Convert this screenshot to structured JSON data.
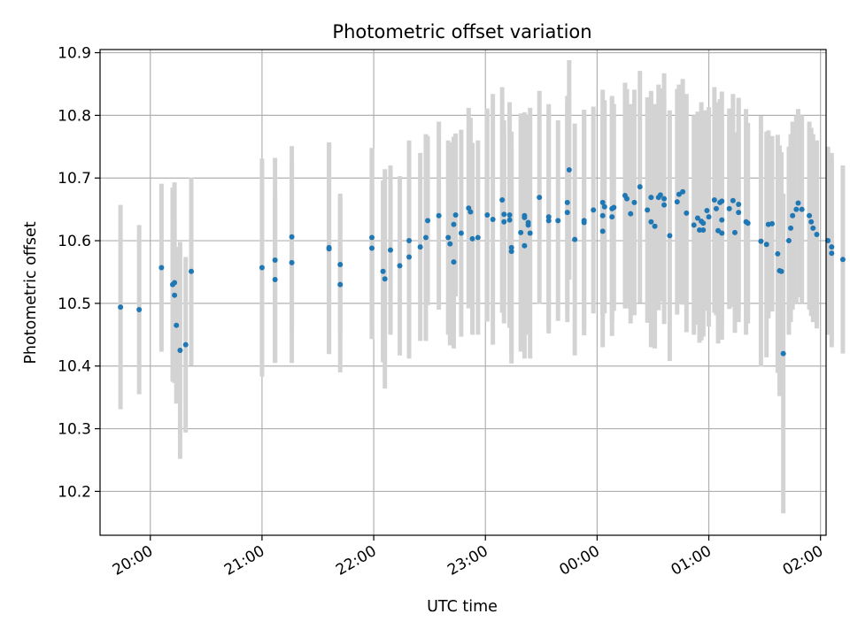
{
  "chart_data": {
    "type": "scatter",
    "title": "Photometric offset variation",
    "xlabel": "UTC time",
    "ylabel": "Photometric offset",
    "x_axis": {
      "kind": "time",
      "range": [
        "19:33",
        "02:03"
      ],
      "ticks": [
        "20:00",
        "21:00",
        "22:00",
        "23:00",
        "00:00",
        "01:00",
        "02:00"
      ]
    },
    "y_axis": {
      "range": [
        10.13,
        10.905
      ],
      "ticks": [
        "10.2",
        "10.3",
        "10.4",
        "10.5",
        "10.6",
        "10.7",
        "10.8",
        "10.9"
      ]
    },
    "grid": true,
    "legend": "none",
    "colors": {
      "point": "#1f77b4",
      "errorbar": "#d3d3d3",
      "grid": "#b0b0b0"
    },
    "series": [
      {
        "x": [
          "19:44",
          "19:54",
          "20:06",
          "20:12",
          "20:13",
          "20:13",
          "20:14",
          "20:16",
          "20:19",
          "20:22",
          "21:00",
          "21:07",
          "21:07",
          "21:16",
          "21:16",
          "21:36",
          "21:36",
          "21:42",
          "21:42",
          "21:59",
          "21:59",
          "22:05",
          "22:06",
          "22:09",
          "22:14",
          "22:19",
          "22:19",
          "22:25",
          "22:28",
          "22:29",
          "22:35",
          "22:40",
          "22:41",
          "22:43",
          "22:43",
          "22:44",
          "22:47",
          "22:51",
          "22:52",
          "22:53",
          "22:56",
          "23:01",
          "23:04",
          "23:09",
          "23:10",
          "23:10",
          "23:13",
          "23:13",
          "23:14",
          "23:14",
          "23:19",
          "23:21",
          "23:21",
          "23:21",
          "23:23",
          "23:23",
          "23:24",
          "23:29",
          "23:34",
          "23:34",
          "23:39",
          "23:44",
          "23:44",
          "23:45",
          "23:48",
          "23:53",
          "23:53",
          "23:58",
          "24:03",
          "24:03",
          "24:03",
          "24:04",
          "24:08",
          "24:08",
          "24:09",
          "24:15",
          "24:16",
          "24:18",
          "24:20",
          "24:23",
          "24:27",
          "24:29",
          "24:29",
          "24:31",
          "24:33",
          "24:34",
          "24:36",
          "24:36",
          "24:39",
          "24:43",
          "24:44",
          "24:46",
          "24:48",
          "24:52",
          "24:54",
          "24:55",
          "24:56",
          "24:57",
          "24:57",
          "24:59",
          "25:00",
          "25:03",
          "25:04",
          "25:05",
          "25:06",
          "25:07",
          "25:07",
          "25:07",
          "25:11",
          "25:13",
          "25:14",
          "25:16",
          "25:16",
          "25:20",
          "25:21",
          "25:28",
          "25:31",
          "25:32",
          "25:34",
          "25:37",
          "25:38",
          "25:39",
          "25:40",
          "25:43",
          "25:44",
          "25:45",
          "25:47",
          "25:48",
          "25:50",
          "25:54",
          "25:55",
          "25:56",
          "25:58",
          "26:04",
          "26:06",
          "26:06",
          "26:12"
        ],
        "y": [
          10.494,
          10.49,
          10.557,
          10.53,
          10.533,
          10.513,
          10.465,
          10.425,
          10.434,
          10.551,
          10.557,
          10.569,
          10.538,
          10.565,
          10.606,
          10.589,
          10.587,
          10.562,
          10.53,
          10.605,
          10.588,
          10.551,
          10.539,
          10.585,
          10.56,
          10.6,
          10.574,
          10.59,
          10.605,
          10.632,
          10.64,
          10.605,
          10.595,
          10.566,
          10.626,
          10.641,
          10.612,
          10.652,
          10.646,
          10.603,
          10.605,
          10.641,
          10.634,
          10.665,
          10.642,
          10.63,
          10.641,
          10.633,
          10.583,
          10.589,
          10.613,
          10.64,
          10.592,
          10.637,
          10.625,
          10.629,
          10.612,
          10.669,
          10.632,
          10.638,
          10.632,
          10.645,
          10.661,
          10.713,
          10.602,
          10.629,
          10.632,
          10.649,
          10.661,
          10.64,
          10.615,
          10.654,
          10.638,
          10.651,
          10.653,
          10.672,
          10.667,
          10.643,
          10.661,
          10.686,
          10.649,
          10.669,
          10.63,
          10.623,
          10.669,
          10.673,
          10.667,
          10.657,
          10.608,
          10.662,
          10.674,
          10.678,
          10.644,
          10.625,
          10.636,
          10.617,
          10.631,
          10.628,
          10.617,
          10.648,
          10.638,
          10.665,
          10.651,
          10.616,
          10.661,
          10.663,
          10.612,
          10.633,
          10.651,
          10.664,
          10.613,
          10.645,
          10.658,
          10.63,
          10.628,
          10.599,
          10.594,
          10.626,
          10.627,
          10.579,
          10.552,
          10.551,
          10.42,
          10.6,
          10.62,
          10.64,
          10.65,
          10.66,
          10.65,
          10.64,
          10.63,
          10.62,
          10.61,
          10.6,
          10.59,
          10.58,
          10.57
        ],
        "yerr": [
          0.163,
          0.135,
          0.134,
          0.155,
          0.16,
          0.122,
          0.125,
          0.173,
          0.14,
          0.15,
          0.174,
          0.163,
          0.133,
          0.16,
          0.145,
          0.168,
          0.168,
          0.113,
          0.14,
          0.143,
          0.145,
          0.145,
          0.175,
          0.135,
          0.143,
          0.16,
          0.162,
          0.15,
          0.165,
          0.135,
          0.15,
          0.155,
          0.162,
          0.138,
          0.14,
          0.13,
          0.165,
          0.16,
          0.15,
          0.153,
          0.155,
          0.17,
          0.2,
          0.18,
          0.13,
          0.162,
          0.18,
          0.17,
          0.165,
          0.185,
          0.19,
          0.165,
          0.18,
          0.155,
          0.175,
          0.17,
          0.2,
          0.17,
          0.18,
          0.18,
          0.16,
          0.175,
          0.17,
          0.175,
          0.185,
          0.18,
          0.17,
          0.165,
          0.18,
          0.16,
          0.185,
          0.17,
          0.19,
          0.18,
          0.165,
          0.18,
          0.175,
          0.175,
          0.18,
          0.185,
          0.18,
          0.17,
          0.2,
          0.195,
          0.18,
          0.17,
          0.2,
          0.17,
          0.2,
          0.18,
          0.175,
          0.18,
          0.19,
          0.175,
          0.17,
          0.18,
          0.19,
          0.18,
          0.17,
          0.16,
          0.175,
          0.18,
          0.17,
          0.18,
          0.165,
          0.175,
          0.17,
          0.17,
          0.16,
          0.17,
          0.16,
          0.175,
          0.17,
          0.18,
          0.16,
          0.2,
          0.18,
          0.15,
          0.14,
          0.19,
          0.2,
          0.19,
          0.255,
          0.15,
          0.15,
          0.15,
          0.15,
          0.15,
          0.15,
          0.15,
          0.15,
          0.15,
          0.15,
          0.15,
          0.15,
          0.15,
          0.15
        ]
      }
    ]
  }
}
